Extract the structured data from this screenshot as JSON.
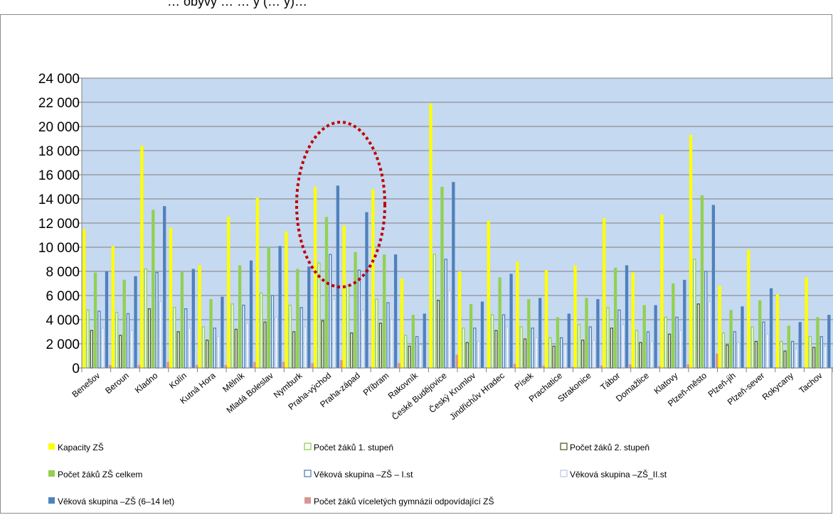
{
  "chart_data": {
    "type": "bar",
    "title": "… obyvy   …    … y (… y)…",
    "xlabel": "",
    "ylabel": "",
    "ylim": [
      0,
      24000
    ],
    "yticks": [
      0,
      2000,
      4000,
      6000,
      8000,
      10000,
      12000,
      14000,
      16000,
      18000,
      20000,
      22000,
      24000
    ],
    "ytick_labels": [
      "0",
      "2 000",
      "4 000",
      "6 000",
      "8 000",
      "10 000",
      "12 000",
      "14 000",
      "16 000",
      "18 000",
      "20 000",
      "22 000",
      "24 000"
    ],
    "grid": true,
    "legend_position": "bottom",
    "categories": [
      "Benešov",
      "Beroun",
      "Kladno",
      "Kolín",
      "Kutná Hora",
      "Mělník",
      "Mladá Boleslav",
      "Nymburk",
      "Praha-východ",
      "Praha-západ",
      "Příbram",
      "Rakovník",
      "České Budějovice",
      "Český Krumlov",
      "Jindřichův Hradec",
      "Písek",
      "Prachatice",
      "Strakonice",
      "Tábor",
      "Domažlice",
      "Klatovy",
      "Plzeň-město",
      "Plzeň-jih",
      "Plzeň-sever",
      "Rokycany",
      "Tachov"
    ],
    "series": [
      {
        "name": "Kapacity ZŠ",
        "color": "#ffff00",
        "style": "fill",
        "values": [
          11500,
          10100,
          18400,
          11600,
          8500,
          12500,
          14100,
          11300,
          15000,
          11800,
          14800,
          7400,
          21900,
          8000,
          12200,
          8800,
          8100,
          8500,
          12400,
          7900,
          12700,
          19300,
          6800,
          9800,
          6100,
          7500
        ]
      },
      {
        "name": "Počet žáků 1. stupeň",
        "color": "#92d050",
        "style": "outline",
        "values": [
          4800,
          4600,
          8200,
          5000,
          3400,
          5300,
          6200,
          5200,
          8700,
          6800,
          5700,
          2700,
          9400,
          3300,
          4400,
          3400,
          2500,
          3600,
          5000,
          3100,
          4200,
          9000,
          2900,
          3400,
          2200,
          2600
        ]
      },
      {
        "name": "Počet žáků 2. stupeň",
        "color": "#4f6228",
        "style": "outline",
        "values": [
          3100,
          2700,
          4900,
          3000,
          2300,
          3200,
          3800,
          3000,
          3900,
          2900,
          3700,
          1800,
          5600,
          2100,
          3100,
          2400,
          1800,
          2300,
          3300,
          2100,
          2800,
          5300,
          1900,
          2200,
          1400,
          1700
        ]
      },
      {
        "name": "Počet žáků ZŠ celkem",
        "color": "#92d050",
        "style": "fill",
        "values": [
          7900,
          7300,
          13100,
          8000,
          5700,
          8500,
          10000,
          8200,
          12500,
          9600,
          9400,
          4400,
          15000,
          5300,
          7500,
          5700,
          4200,
          5800,
          8300,
          5200,
          7000,
          14300,
          4800,
          5600,
          3500,
          4200
        ]
      },
      {
        "name": "Věková skupina –ZŠ – I.st",
        "color": "#4f81bd",
        "style": "outline",
        "values": [
          4700,
          4500,
          7900,
          4900,
          3300,
          5200,
          6000,
          5000,
          9400,
          8100,
          5400,
          2600,
          9000,
          3300,
          4400,
          3300,
          2500,
          3400,
          4800,
          3000,
          4200,
          8000,
          3000,
          3800,
          2200,
          2600
        ]
      },
      {
        "name": "Věková skupina –ZŠ_II.st",
        "color": "#b9cde5",
        "style": "outline",
        "values": [
          3300,
          3100,
          5500,
          3300,
          2600,
          3700,
          4200,
          3400,
          5700,
          4800,
          4000,
          1900,
          6400,
          2200,
          3400,
          2500,
          1900,
          2300,
          3600,
          2200,
          3100,
          5500,
          2100,
          2800,
          1600,
          1800
        ]
      },
      {
        "name": "Věková skupina –ZŠ (6–14 let)",
        "color": "#4f81bd",
        "style": "fill",
        "values": [
          8000,
          7600,
          13400,
          8200,
          5900,
          8900,
          10100,
          8400,
          15100,
          12900,
          9400,
          4500,
          15400,
          5500,
          7800,
          5800,
          4500,
          5700,
          8500,
          5200,
          7300,
          13500,
          5100,
          6600,
          3800,
          4400
        ]
      },
      {
        "name": "Počet žáků víceletých gymnázii odpovídající ZŠ",
        "color": "#d99694",
        "style": "fill",
        "values": [
          250,
          250,
          500,
          250,
          250,
          500,
          500,
          400,
          650,
          100,
          400,
          50,
          1100,
          50,
          350,
          200,
          100,
          200,
          300,
          150,
          300,
          1200,
          50,
          50,
          50,
          50
        ]
      }
    ]
  },
  "legend_rows": [
    [
      0,
      1,
      2
    ],
    [
      3,
      4,
      5
    ],
    [
      6,
      7
    ]
  ]
}
